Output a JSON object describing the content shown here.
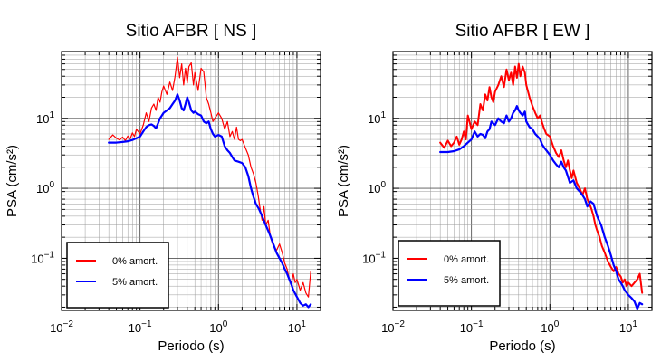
{
  "chart_data": [
    {
      "type": "line",
      "title": "Sitio AFBR [ NS ]",
      "xlabel": "Periodo (s)",
      "ylabel": "PSA (cm/s²)",
      "xscale": "log",
      "yscale": "log",
      "xlim": [
        0.01,
        20
      ],
      "ylim": [
        0.018,
        90
      ],
      "grid": true,
      "legend_position": "bottom-left",
      "x_ticks": [
        {
          "value": 0.01,
          "base": "10",
          "exp": "−2"
        },
        {
          "value": 0.1,
          "base": "10",
          "exp": "−1"
        },
        {
          "value": 1,
          "base": "10",
          "exp": "0"
        },
        {
          "value": 10,
          "base": "10",
          "exp": "1"
        }
      ],
      "y_ticks": [
        {
          "value": 0.1,
          "base": "10",
          "exp": "−1"
        },
        {
          "value": 1,
          "base": "10",
          "exp": "0"
        },
        {
          "value": 10,
          "base": "10",
          "exp": "1"
        }
      ],
      "series": [
        {
          "name": "0% amort.",
          "color": "#ff0000",
          "stroke": 1.2,
          "x": [
            0.04,
            0.045,
            0.05,
            0.055,
            0.06,
            0.065,
            0.07,
            0.075,
            0.08,
            0.085,
            0.09,
            0.1,
            0.11,
            0.12,
            0.13,
            0.14,
            0.15,
            0.16,
            0.17,
            0.18,
            0.19,
            0.2,
            0.22,
            0.24,
            0.26,
            0.28,
            0.3,
            0.32,
            0.34,
            0.36,
            0.38,
            0.4,
            0.42,
            0.45,
            0.48,
            0.5,
            0.55,
            0.6,
            0.65,
            0.7,
            0.75,
            0.8,
            0.85,
            0.9,
            1.0,
            1.1,
            1.2,
            1.3,
            1.4,
            1.5,
            1.6,
            1.7,
            1.8,
            1.9,
            2.0,
            2.2,
            2.4,
            2.6,
            2.8,
            3.0,
            3.2,
            3.4,
            3.6,
            3.8,
            4.0,
            4.3,
            4.6,
            5.0,
            5.5,
            6.0,
            6.5,
            7.0,
            7.5,
            8.0,
            8.5,
            9.0,
            9.5,
            10,
            11,
            12,
            13,
            14,
            15
          ],
          "y": [
            5.0,
            5.8,
            5.2,
            4.9,
            5.4,
            4.8,
            5.6,
            5.1,
            6.2,
            5.5,
            7.0,
            6.0,
            8.0,
            12.0,
            9.0,
            14.0,
            16.0,
            13.0,
            20.0,
            17.0,
            24.0,
            29.0,
            22.0,
            33.0,
            25.0,
            40.0,
            75.0,
            38.0,
            60.0,
            30.0,
            52.0,
            32.0,
            55.0,
            62.0,
            30.0,
            45.0,
            25.0,
            52.0,
            46.0,
            20.0,
            16.0,
            12.0,
            9.0,
            10.0,
            12.0,
            10.0,
            7.0,
            9.0,
            5.5,
            6.5,
            5.0,
            7.5,
            5.0,
            4.8,
            5.0,
            3.8,
            3.0,
            2.0,
            1.6,
            1.2,
            0.8,
            0.5,
            0.35,
            0.55,
            0.3,
            0.35,
            0.2,
            0.15,
            0.13,
            0.16,
            0.12,
            0.085,
            0.07,
            0.05,
            0.045,
            0.06,
            0.045,
            0.05,
            0.035,
            0.045,
            0.032,
            0.028,
            0.065
          ]
        },
        {
          "name": "5% amort.",
          "color": "#0000ff",
          "stroke": 2.2,
          "x": [
            0.04,
            0.05,
            0.06,
            0.07,
            0.08,
            0.09,
            0.1,
            0.11,
            0.12,
            0.13,
            0.14,
            0.15,
            0.16,
            0.17,
            0.18,
            0.2,
            0.22,
            0.24,
            0.26,
            0.28,
            0.3,
            0.32,
            0.34,
            0.36,
            0.38,
            0.4,
            0.42,
            0.45,
            0.48,
            0.5,
            0.55,
            0.6,
            0.65,
            0.7,
            0.75,
            0.8,
            0.85,
            0.9,
            1.0,
            1.1,
            1.2,
            1.3,
            1.4,
            1.5,
            1.6,
            1.8,
            2.0,
            2.2,
            2.4,
            2.6,
            2.8,
            3.0,
            3.3,
            3.6,
            4.0,
            4.5,
            5.0,
            5.5,
            6.0,
            6.5,
            7.0,
            7.5,
            8.0,
            8.5,
            9.0,
            10,
            11,
            12,
            13,
            14,
            15
          ],
          "y": [
            4.5,
            4.5,
            4.6,
            4.7,
            4.9,
            5.2,
            5.5,
            6.5,
            7.5,
            8.0,
            8.2,
            7.8,
            7.2,
            8.5,
            10.0,
            12.0,
            13.0,
            14.0,
            16.0,
            18.0,
            22.0,
            18.0,
            14.0,
            13.0,
            16.0,
            20.0,
            17.0,
            13.0,
            12.0,
            12.5,
            11.5,
            11.0,
            9.0,
            8.5,
            9.0,
            7.0,
            6.0,
            5.5,
            5.8,
            5.5,
            4.0,
            3.5,
            3.2,
            2.8,
            2.5,
            2.4,
            2.3,
            2.0,
            1.5,
            1.0,
            0.75,
            0.6,
            0.5,
            0.4,
            0.3,
            0.22,
            0.16,
            0.12,
            0.1,
            0.085,
            0.07,
            0.06,
            0.05,
            0.042,
            0.035,
            0.028,
            0.023,
            0.021,
            0.022,
            0.02,
            0.022
          ]
        }
      ]
    },
    {
      "type": "line",
      "title": "Sitio AFBR [ EW ]",
      "xlabel": "Periodo (s)",
      "ylabel": "PSA (cm/s²)",
      "xscale": "log",
      "yscale": "log",
      "xlim": [
        0.01,
        20
      ],
      "ylim": [
        0.018,
        90
      ],
      "grid": true,
      "legend_position": "bottom-left",
      "x_ticks": [
        {
          "value": 0.01,
          "base": "10",
          "exp": "−2"
        },
        {
          "value": 0.1,
          "base": "10",
          "exp": "−1"
        },
        {
          "value": 1,
          "base": "10",
          "exp": "0"
        },
        {
          "value": 10,
          "base": "10",
          "exp": "1"
        }
      ],
      "y_ticks": [
        {
          "value": 0.1,
          "base": "10",
          "exp": "−1"
        },
        {
          "value": 1,
          "base": "10",
          "exp": "0"
        },
        {
          "value": 10,
          "base": "10",
          "exp": "1"
        }
      ],
      "series": [
        {
          "name": "0% amort.",
          "color": "#ff0000",
          "stroke": 2.0,
          "x": [
            0.04,
            0.045,
            0.05,
            0.055,
            0.06,
            0.065,
            0.07,
            0.075,
            0.08,
            0.085,
            0.09,
            0.1,
            0.11,
            0.12,
            0.13,
            0.14,
            0.15,
            0.16,
            0.17,
            0.18,
            0.19,
            0.2,
            0.22,
            0.24,
            0.26,
            0.28,
            0.3,
            0.32,
            0.34,
            0.36,
            0.38,
            0.4,
            0.42,
            0.45,
            0.48,
            0.5,
            0.55,
            0.6,
            0.65,
            0.7,
            0.75,
            0.8,
            0.85,
            0.9,
            1.0,
            1.1,
            1.2,
            1.3,
            1.4,
            1.5,
            1.6,
            1.7,
            1.8,
            1.9,
            2.0,
            2.2,
            2.4,
            2.6,
            2.8,
            3.0,
            3.2,
            3.4,
            3.6,
            3.8,
            4.0,
            4.3,
            4.6,
            5.0,
            5.5,
            6.0,
            6.5,
            7.0,
            7.5,
            8.0,
            8.5,
            9.0,
            9.5,
            10,
            11,
            12,
            13,
            14,
            15
          ],
          "y": [
            4.5,
            3.8,
            4.8,
            4.0,
            4.5,
            5.5,
            4.2,
            5.0,
            6.5,
            5.0,
            11.0,
            7.0,
            9.0,
            8.0,
            16.0,
            13.0,
            22.0,
            18.0,
            28.0,
            20.0,
            17.0,
            24.0,
            30.0,
            40.0,
            28.0,
            50.0,
            35.0,
            45.0,
            30.0,
            55.0,
            38.0,
            60.0,
            40.0,
            55.0,
            45.0,
            30.0,
            20.0,
            15.0,
            12.0,
            10.0,
            11.0,
            8.5,
            7.0,
            6.0,
            5.5,
            4.0,
            3.2,
            2.8,
            3.5,
            2.5,
            2.0,
            2.5,
            1.8,
            1.4,
            1.8,
            1.2,
            1.0,
            0.8,
            1.0,
            0.7,
            0.6,
            0.5,
            0.4,
            0.3,
            0.25,
            0.2,
            0.15,
            0.12,
            0.09,
            0.075,
            0.065,
            0.075,
            0.06,
            0.055,
            0.045,
            0.05,
            0.04,
            0.045,
            0.04,
            0.045,
            0.05,
            0.06,
            0.032
          ]
        },
        {
          "name": "5% amort.",
          "color": "#0000ff",
          "stroke": 2.2,
          "x": [
            0.04,
            0.05,
            0.06,
            0.07,
            0.08,
            0.09,
            0.1,
            0.11,
            0.12,
            0.13,
            0.14,
            0.15,
            0.16,
            0.17,
            0.18,
            0.2,
            0.22,
            0.24,
            0.26,
            0.28,
            0.3,
            0.32,
            0.34,
            0.36,
            0.38,
            0.4,
            0.42,
            0.45,
            0.48,
            0.5,
            0.55,
            0.6,
            0.65,
            0.7,
            0.75,
            0.8,
            0.85,
            0.9,
            1.0,
            1.1,
            1.2,
            1.3,
            1.4,
            1.5,
            1.6,
            1.8,
            2.0,
            2.2,
            2.4,
            2.6,
            2.8,
            3.0,
            3.3,
            3.6,
            4.0,
            4.5,
            5.0,
            5.5,
            6.0,
            6.5,
            7.0,
            7.5,
            8.0,
            8.5,
            9.0,
            10,
            11,
            12,
            13,
            14,
            15
          ],
          "y": [
            3.3,
            3.3,
            3.4,
            3.6,
            4.0,
            4.5,
            5.0,
            6.5,
            5.5,
            6.0,
            5.8,
            5.2,
            6.5,
            7.0,
            9.0,
            8.0,
            10.0,
            9.0,
            8.5,
            11.0,
            9.0,
            10.0,
            12.0,
            13.0,
            15.0,
            13.0,
            12.0,
            11.0,
            12.5,
            9.0,
            7.5,
            7.0,
            6.0,
            5.5,
            5.0,
            4.2,
            3.8,
            3.5,
            3.0,
            2.5,
            2.2,
            2.0,
            2.4,
            2.0,
            1.8,
            1.2,
            1.3,
            1.0,
            0.9,
            0.8,
            0.7,
            0.55,
            0.65,
            0.6,
            0.4,
            0.3,
            0.2,
            0.15,
            0.11,
            0.08,
            0.065,
            0.05,
            0.045,
            0.04,
            0.035,
            0.03,
            0.027,
            0.024,
            0.019,
            0.023,
            0.022
          ]
        }
      ]
    }
  ]
}
